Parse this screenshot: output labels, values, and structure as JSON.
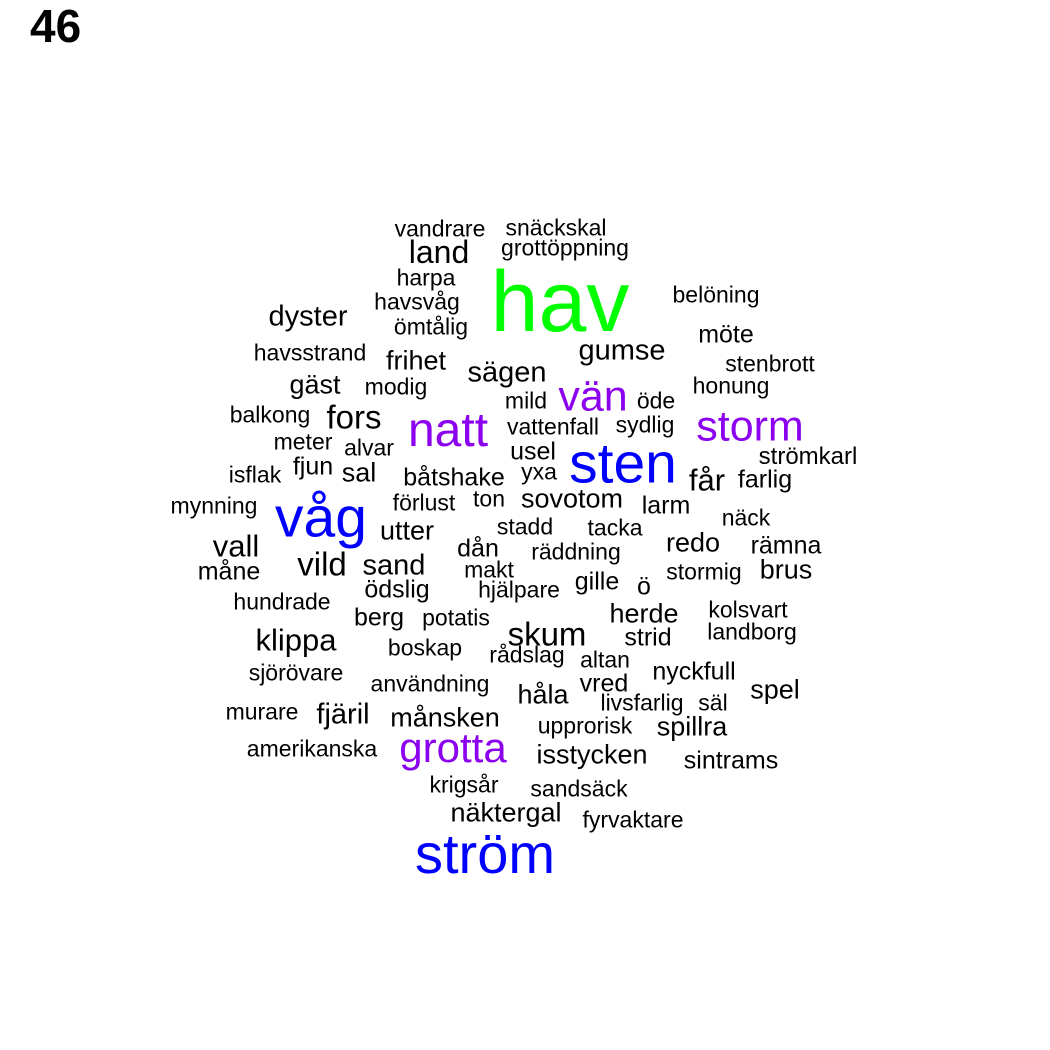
{
  "page_number": "46",
  "colors": {
    "default": "#000000",
    "green": "#00ff00",
    "blue": "#0000ff",
    "purple": "#8b00ee"
  },
  "words": [
    {
      "text": "vandrare",
      "color": "default"
    },
    {
      "text": "snäckskal",
      "color": "default"
    },
    {
      "text": "land",
      "color": "default"
    },
    {
      "text": "grottöppning",
      "color": "default"
    },
    {
      "text": "harpa",
      "color": "default"
    },
    {
      "text": "hav",
      "color": "green"
    },
    {
      "text": "belöning",
      "color": "default"
    },
    {
      "text": "havsvåg",
      "color": "default"
    },
    {
      "text": "dyster",
      "color": "default"
    },
    {
      "text": "ömtålig",
      "color": "default"
    },
    {
      "text": "möte",
      "color": "default"
    },
    {
      "text": "havsstrand",
      "color": "default"
    },
    {
      "text": "gumse",
      "color": "default"
    },
    {
      "text": "frihet",
      "color": "default"
    },
    {
      "text": "stenbrott",
      "color": "default"
    },
    {
      "text": "sägen",
      "color": "default"
    },
    {
      "text": "gäst",
      "color": "default"
    },
    {
      "text": "modig",
      "color": "default"
    },
    {
      "text": "honung",
      "color": "default"
    },
    {
      "text": "vän",
      "color": "purple"
    },
    {
      "text": "mild",
      "color": "default"
    },
    {
      "text": "öde",
      "color": "default"
    },
    {
      "text": "balkong",
      "color": "default"
    },
    {
      "text": "fors",
      "color": "default"
    },
    {
      "text": "natt",
      "color": "purple"
    },
    {
      "text": "storm",
      "color": "purple"
    },
    {
      "text": "vattenfall",
      "color": "default"
    },
    {
      "text": "sydlig",
      "color": "default"
    },
    {
      "text": "meter",
      "color": "default"
    },
    {
      "text": "alvar",
      "color": "default"
    },
    {
      "text": "usel",
      "color": "default"
    },
    {
      "text": "sten",
      "color": "blue"
    },
    {
      "text": "strömkarl",
      "color": "default"
    },
    {
      "text": "isflak",
      "color": "default"
    },
    {
      "text": "fjun",
      "color": "default"
    },
    {
      "text": "sal",
      "color": "default"
    },
    {
      "text": "båtshake",
      "color": "default"
    },
    {
      "text": "yxa",
      "color": "default"
    },
    {
      "text": "får",
      "color": "default"
    },
    {
      "text": "farlig",
      "color": "default"
    },
    {
      "text": "mynning",
      "color": "default"
    },
    {
      "text": "våg",
      "color": "blue"
    },
    {
      "text": "förlust",
      "color": "default"
    },
    {
      "text": "ton",
      "color": "default"
    },
    {
      "text": "sovotom",
      "color": "default"
    },
    {
      "text": "larm",
      "color": "default"
    },
    {
      "text": "näck",
      "color": "default"
    },
    {
      "text": "utter",
      "color": "default"
    },
    {
      "text": "stadd",
      "color": "default"
    },
    {
      "text": "tacka",
      "color": "default"
    },
    {
      "text": "vall",
      "color": "default"
    },
    {
      "text": "redo",
      "color": "default"
    },
    {
      "text": "rämna",
      "color": "default"
    },
    {
      "text": "dån",
      "color": "default"
    },
    {
      "text": "räddning",
      "color": "default"
    },
    {
      "text": "vild",
      "color": "default"
    },
    {
      "text": "sand",
      "color": "default"
    },
    {
      "text": "måne",
      "color": "default"
    },
    {
      "text": "makt",
      "color": "default"
    },
    {
      "text": "stormig",
      "color": "default"
    },
    {
      "text": "brus",
      "color": "default"
    },
    {
      "text": "gille",
      "color": "default"
    },
    {
      "text": "ö",
      "color": "default"
    },
    {
      "text": "ödslig",
      "color": "default"
    },
    {
      "text": "hjälpare",
      "color": "default"
    },
    {
      "text": "hundrade",
      "color": "default"
    },
    {
      "text": "kolsvart",
      "color": "default"
    },
    {
      "text": "herde",
      "color": "default"
    },
    {
      "text": "berg",
      "color": "default"
    },
    {
      "text": "potatis",
      "color": "default"
    },
    {
      "text": "landborg",
      "color": "default"
    },
    {
      "text": "skum",
      "color": "default"
    },
    {
      "text": "klippa",
      "color": "default"
    },
    {
      "text": "strid",
      "color": "default"
    },
    {
      "text": "boskap",
      "color": "default"
    },
    {
      "text": "rådslag",
      "color": "default"
    },
    {
      "text": "altan",
      "color": "default"
    },
    {
      "text": "sjörövare",
      "color": "default"
    },
    {
      "text": "nyckfull",
      "color": "default"
    },
    {
      "text": "användning",
      "color": "default"
    },
    {
      "text": "vred",
      "color": "default"
    },
    {
      "text": "spel",
      "color": "default"
    },
    {
      "text": "håla",
      "color": "default"
    },
    {
      "text": "livsfarlig",
      "color": "default"
    },
    {
      "text": "säl",
      "color": "default"
    },
    {
      "text": "murare",
      "color": "default"
    },
    {
      "text": "fjäril",
      "color": "default"
    },
    {
      "text": "månsken",
      "color": "default"
    },
    {
      "text": "upprorisk",
      "color": "default"
    },
    {
      "text": "spillra",
      "color": "default"
    },
    {
      "text": "amerikanska",
      "color": "default"
    },
    {
      "text": "grotta",
      "color": "purple"
    },
    {
      "text": "isstycken",
      "color": "default"
    },
    {
      "text": "sintrams",
      "color": "default"
    },
    {
      "text": "krigsår",
      "color": "default"
    },
    {
      "text": "sandsäck",
      "color": "default"
    },
    {
      "text": "näktergal",
      "color": "default"
    },
    {
      "text": "fyrvaktare",
      "color": "default"
    },
    {
      "text": "ström",
      "color": "blue"
    }
  ]
}
